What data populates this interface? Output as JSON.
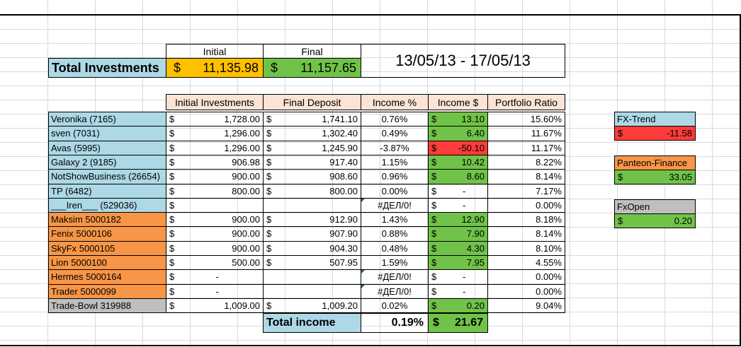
{
  "summary": {
    "title": "Total Investments",
    "initial_header": "Initial",
    "final_header": "Final",
    "currency": "$",
    "initial_value": "11,135.98",
    "final_value": "11,157.65",
    "date_range": "13/05/13 - 17/05/13"
  },
  "table": {
    "headers": [
      "Initial Investments",
      "Final Deposit",
      "Income %",
      "Income $",
      "Portfolio Ratio"
    ],
    "rows": [
      {
        "name": "Veronika (7165)",
        "initial": "1,728.00",
        "final": "1,741.10",
        "income_pct": "0.76%",
        "income_usd": "13.10",
        "ratio": "15.60%"
      },
      {
        "name": "sven (7031)",
        "initial": "1,296.00",
        "final": "1,302.40",
        "income_pct": "0.49%",
        "income_usd": "6.40",
        "ratio": "11.67%"
      },
      {
        "name": "Avas (5995)",
        "initial": "1,296.00",
        "final": "1,245.90",
        "income_pct": "-3.87%",
        "income_usd": "-50.10",
        "ratio": "11.17%"
      },
      {
        "name": "Galaxy 2 (9185)",
        "initial": "906.98",
        "final": "917.40",
        "income_pct": "1.15%",
        "income_usd": "10.42",
        "ratio": "8.22%"
      },
      {
        "name": "NotShowBusiness (26654)",
        "initial": "900.00",
        "final": "908.60",
        "income_pct": "0.96%",
        "income_usd": "8.60",
        "ratio": "8.14%"
      },
      {
        "name": "TP (6482)",
        "initial": "800.00",
        "final": "800.00",
        "income_pct": "0.00%",
        "income_usd": "-",
        "ratio": "7.17%"
      },
      {
        "name": "___Iren___ (529036)",
        "initial": "",
        "final": "",
        "income_pct": "#ДЕЛ/0!",
        "income_usd": "-",
        "ratio": "0.00%"
      },
      {
        "name": "Maksim 5000182",
        "initial": "900.00",
        "final": "912.90",
        "income_pct": "1.43%",
        "income_usd": "12.90",
        "ratio": "8.18%"
      },
      {
        "name": "Fenix 5000106",
        "initial": "900.00",
        "final": "907.90",
        "income_pct": "0.88%",
        "income_usd": "7.90",
        "ratio": "8.14%"
      },
      {
        "name": "SkyFx 5000105",
        "initial": "900.00",
        "final": "904.30",
        "income_pct": "0.48%",
        "income_usd": "4.30",
        "ratio": "8.10%"
      },
      {
        "name": "Lion 5000100",
        "initial": "500.00",
        "final": "507.95",
        "income_pct": "1.59%",
        "income_usd": "7.95",
        "ratio": "4.55%"
      },
      {
        "name": "Hermes 5000164",
        "initial": "-",
        "final": "",
        "income_pct": "#ДЕЛ/0!",
        "income_usd": "-",
        "ratio": "0.00%"
      },
      {
        "name": "Trader 5000099",
        "initial": "-",
        "final": "",
        "income_pct": "#ДЕЛ/0!",
        "income_usd": "-",
        "ratio": "0.00%"
      },
      {
        "name": "Trade-Bowl 319988",
        "initial": "1,009.00",
        "final": "1,009.20",
        "income_pct": "0.02%",
        "income_usd": "0.20",
        "ratio": "9.04%"
      }
    ],
    "total_label": "Total income",
    "total_pct": "0.19%",
    "total_usd": "21.67"
  },
  "side": {
    "fx_trend": {
      "label": "FX-Trend",
      "value": "-11.58"
    },
    "panteon": {
      "label": "Panteon-Finance",
      "value": "33.05"
    },
    "fxopen": {
      "label": "FxOpen",
      "value": "0.20"
    }
  },
  "colors": {
    "blue": "#add8e6",
    "orange": "#f79646",
    "grey": "#bfbfbf",
    "green": "#70c348",
    "red": "#ff3b3b",
    "yellow": "#ffc000",
    "peach": "#fbe4d5"
  }
}
